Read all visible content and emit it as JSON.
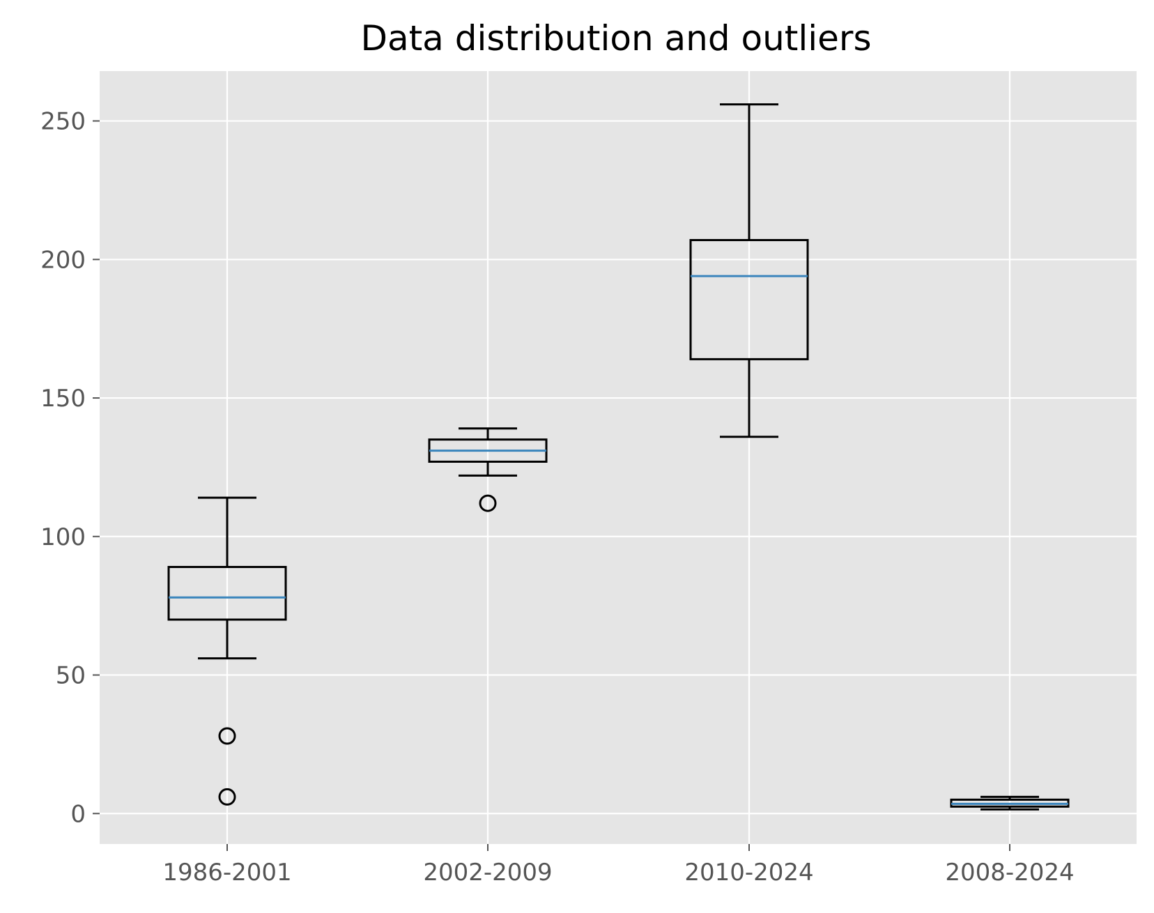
{
  "chart_data": {
    "type": "box",
    "title": "Data distribution and outliers",
    "xlabel": "",
    "ylabel": "",
    "ylim": [
      -11,
      268
    ],
    "yticks": [
      0,
      50,
      100,
      150,
      200,
      250
    ],
    "categories": [
      "1986-2001",
      "2002-2009",
      "2010-2024",
      "2008-2024"
    ],
    "boxes": [
      {
        "label": "1986-2001",
        "whisker_low": 56,
        "q1": 70,
        "median": 78,
        "q3": 89,
        "whisker_high": 114,
        "outliers": [
          28,
          6
        ]
      },
      {
        "label": "2002-2009",
        "whisker_low": 122,
        "q1": 127,
        "median": 131,
        "q3": 135,
        "whisker_high": 139,
        "outliers": [
          112
        ]
      },
      {
        "label": "2010-2024",
        "whisker_low": 136,
        "q1": 164,
        "median": 194,
        "q3": 207,
        "whisker_high": 256,
        "outliers": []
      },
      {
        "label": "2008-2024",
        "whisker_low": 1.5,
        "q1": 2.5,
        "median": 3.5,
        "q3": 5,
        "whisker_high": 6,
        "outliers": []
      }
    ],
    "grid": true,
    "colors": {
      "plot_background": "#e5e5e5",
      "grid": "#ffffff",
      "box": "#000000",
      "median": "#3a85bc",
      "tick_label": "#555555"
    }
  }
}
